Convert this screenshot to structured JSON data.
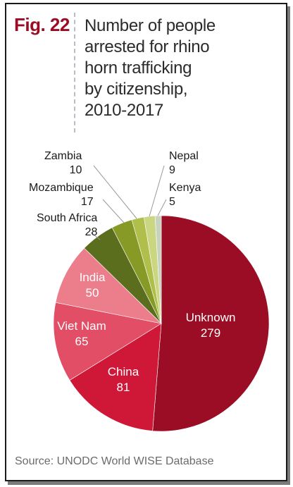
{
  "figure": {
    "number": "Fig. 22",
    "number_color": "#9b0d24"
  },
  "title": "Number of people arrested for rhino horn trafficking by citizenship, 2010-2017",
  "title_lines": [
    "Number of people",
    "arrested for rhino",
    "horn trafficking",
    "by citizenship,",
    "2010-2017"
  ],
  "source": "Source: UNODC World WISE Database",
  "chart_data": {
    "type": "pie",
    "title": "Number of people arrested for rhino horn trafficking by citizenship, 2010-2017",
    "slices": [
      {
        "label": "Unknown",
        "value": 279,
        "color": "#9b0d24",
        "text_color": "#ffffff"
      },
      {
        "label": "China",
        "value": 81,
        "color": "#cf1737",
        "text_color": "#ffffff"
      },
      {
        "label": "Viet Nam",
        "value": 65,
        "color": "#e14e66",
        "text_color": "#ffffff"
      },
      {
        "label": "India",
        "value": 50,
        "color": "#ec7e8b",
        "text_color": "#ffffff"
      },
      {
        "label": "South Africa",
        "value": 28,
        "color": "#5b6e1e",
        "text_color": "#1a1a1a"
      },
      {
        "label": "Mozambique",
        "value": 17,
        "color": "#889a26",
        "text_color": "#1a1a1a"
      },
      {
        "label": "Zambia",
        "value": 10,
        "color": "#b0bf4c",
        "text_color": "#1a1a1a"
      },
      {
        "label": "Nepal",
        "value": 9,
        "color": "#cbd683",
        "text_color": "#1a1a1a"
      },
      {
        "label": "Kenya",
        "value": 5,
        "color": "#c8d3bf",
        "text_color": "#1a1a1a"
      }
    ]
  }
}
